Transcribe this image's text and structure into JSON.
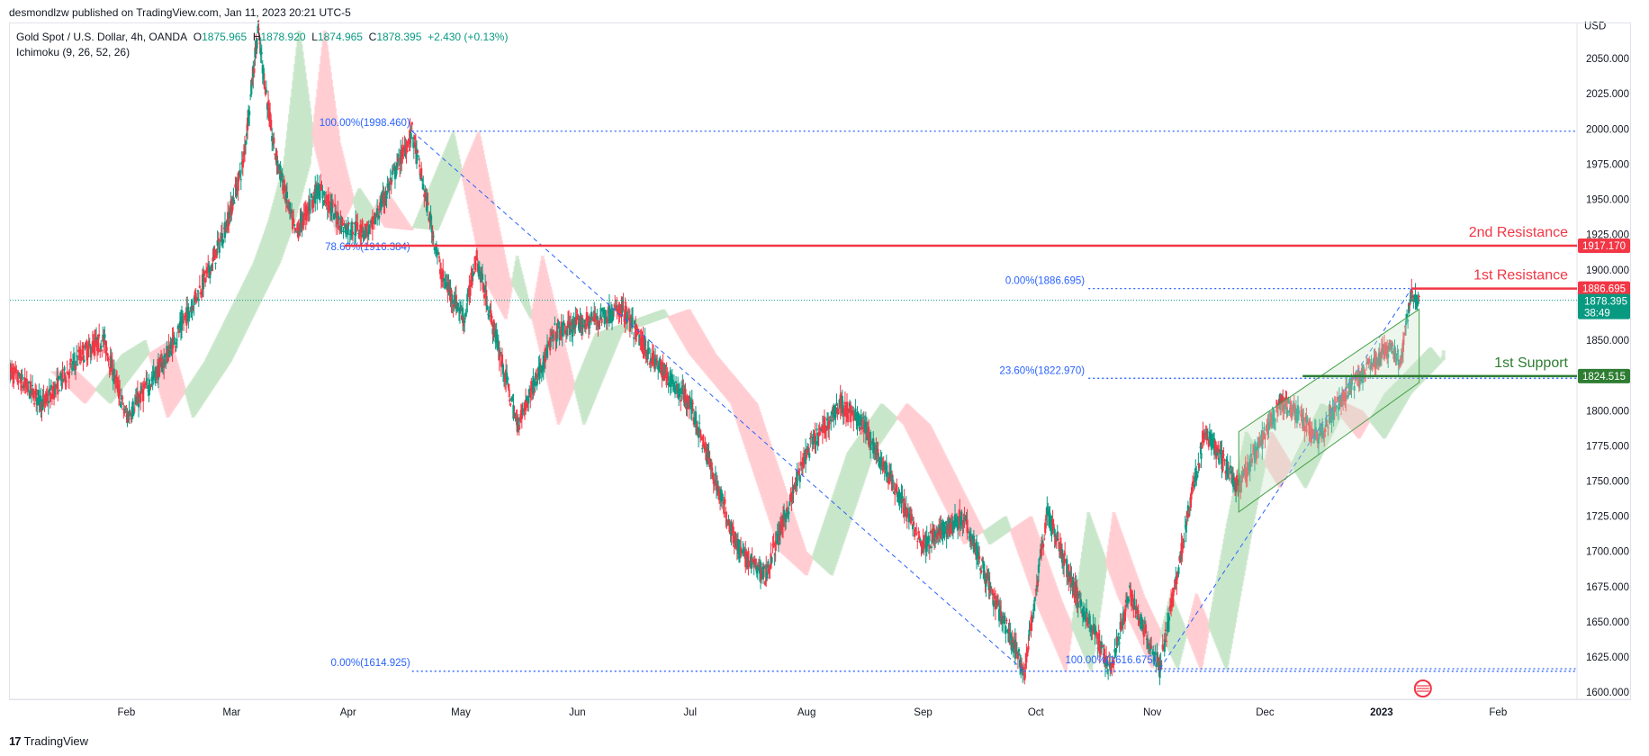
{
  "header": {
    "published_line": "desmondlzw published on TradingView.com, Jan 11, 2023 20:21 UTC-5"
  },
  "legend": {
    "symbol": "Gold Spot / U.S. Dollar, 4h, OANDA",
    "o_label": "O",
    "o_value": "1875.965",
    "h_label": "H",
    "h_value": "1878.920",
    "l_label": "L",
    "l_value": "1874.965",
    "c_label": "C",
    "c_value": "1878.395",
    "change": "+2.430 (+0.13%)",
    "indicator": "Ichimoku (9, 26, 52, 26)"
  },
  "footer": {
    "brand": "TradingView"
  },
  "colors": {
    "up": "#089981",
    "down": "#f23645",
    "fib": "#2962ff",
    "resistance": "#f23645",
    "support": "#2e7d32",
    "cloud_bull": "#c8e6c9",
    "cloud_bear": "#ffcdd2",
    "price_tag": "#089981"
  },
  "chart_data": {
    "type": "candlestick",
    "title": "Gold Spot / U.S. Dollar, 4h, OANDA",
    "currency": "USD",
    "yrange": [
      1595,
      2075
    ],
    "yticks": [
      "2050.000",
      "2025.000",
      "2000.000",
      "1975.000",
      "1950.000",
      "1925.000",
      "1900.000",
      "1850.000",
      "1800.000",
      "1775.000",
      "1750.000",
      "1725.000",
      "1700.000",
      "1675.000",
      "1650.000",
      "1625.000",
      "1600.000"
    ],
    "xticks": [
      "Feb",
      "Mar",
      "Apr",
      "May",
      "Jun",
      "Jul",
      "Aug",
      "Sep",
      "Oct",
      "Nov",
      "Dec",
      "2023",
      "Feb"
    ],
    "price_path": [
      {
        "date": "2022-01-01",
        "price": 1828
      },
      {
        "date": "2022-01-10",
        "price": 1805
      },
      {
        "date": "2022-01-20",
        "price": 1840
      },
      {
        "date": "2022-01-26",
        "price": 1850
      },
      {
        "date": "2022-02-01",
        "price": 1795
      },
      {
        "date": "2022-02-11",
        "price": 1835
      },
      {
        "date": "2022-02-24",
        "price": 1905
      },
      {
        "date": "2022-02-28",
        "price": 1935
      },
      {
        "date": "2022-03-04",
        "price": 1975
      },
      {
        "date": "2022-03-08",
        "price": 2070
      },
      {
        "date": "2022-03-12",
        "price": 1990
      },
      {
        "date": "2022-03-18",
        "price": 1925
      },
      {
        "date": "2022-03-24",
        "price": 1958
      },
      {
        "date": "2022-03-31",
        "price": 1930
      },
      {
        "date": "2022-04-07",
        "price": 1928
      },
      {
        "date": "2022-04-18",
        "price": 1998
      },
      {
        "date": "2022-04-26",
        "price": 1895
      },
      {
        "date": "2022-05-02",
        "price": 1865
      },
      {
        "date": "2022-05-05",
        "price": 1910
      },
      {
        "date": "2022-05-16",
        "price": 1790
      },
      {
        "date": "2022-05-26",
        "price": 1855
      },
      {
        "date": "2022-06-13",
        "price": 1872
      },
      {
        "date": "2022-06-20",
        "price": 1840
      },
      {
        "date": "2022-07-01",
        "price": 1805
      },
      {
        "date": "2022-07-14",
        "price": 1700
      },
      {
        "date": "2022-07-21",
        "price": 1683
      },
      {
        "date": "2022-08-01",
        "price": 1770
      },
      {
        "date": "2022-08-10",
        "price": 1805
      },
      {
        "date": "2022-08-16",
        "price": 1790
      },
      {
        "date": "2022-09-01",
        "price": 1705
      },
      {
        "date": "2022-09-12",
        "price": 1725
      },
      {
        "date": "2022-09-20",
        "price": 1665
      },
      {
        "date": "2022-09-28",
        "price": 1615
      },
      {
        "date": "2022-10-04",
        "price": 1728
      },
      {
        "date": "2022-10-12",
        "price": 1668
      },
      {
        "date": "2022-10-21",
        "price": 1617
      },
      {
        "date": "2022-10-26",
        "price": 1670
      },
      {
        "date": "2022-11-03",
        "price": 1616
      },
      {
        "date": "2022-11-10",
        "price": 1720
      },
      {
        "date": "2022-11-15",
        "price": 1785
      },
      {
        "date": "2022-11-24",
        "price": 1745
      },
      {
        "date": "2022-12-05",
        "price": 1805
      },
      {
        "date": "2022-12-09",
        "price": 1800
      },
      {
        "date": "2022-12-15",
        "price": 1780
      },
      {
        "date": "2022-12-22",
        "price": 1812
      },
      {
        "date": "2023-01-03",
        "price": 1845
      },
      {
        "date": "2023-01-06",
        "price": 1835
      },
      {
        "date": "2023-01-09",
        "price": 1882
      },
      {
        "date": "2023-01-11",
        "price": 1878.395
      }
    ],
    "fibonacci": {
      "retracement_1": [
        {
          "label": "100.00%(1998.460)",
          "price": 1998.46
        },
        {
          "label": "78.60%(1916.384)",
          "price": 1916.384
        },
        {
          "label": "0.00%(1614.925)",
          "price": 1614.925
        }
      ],
      "retracement_2": [
        {
          "label": "0.00%(1886.695)",
          "price": 1886.695
        },
        {
          "label": "23.60%(1822.970)",
          "price": 1822.97
        },
        {
          "label": "100.00%(1616.675)",
          "price": 1616.675
        }
      ]
    },
    "levels": [
      {
        "name": "2nd Resistance",
        "price": 1917.17,
        "tag": "1917.170"
      },
      {
        "name": "1st Resistance",
        "price": 1886.695,
        "tag": "1886.695"
      },
      {
        "name": "1st Support",
        "price": 1824.515,
        "tag": "1824.515"
      }
    ],
    "last_price": {
      "tag": "1878.395",
      "countdown": "38:49"
    }
  }
}
